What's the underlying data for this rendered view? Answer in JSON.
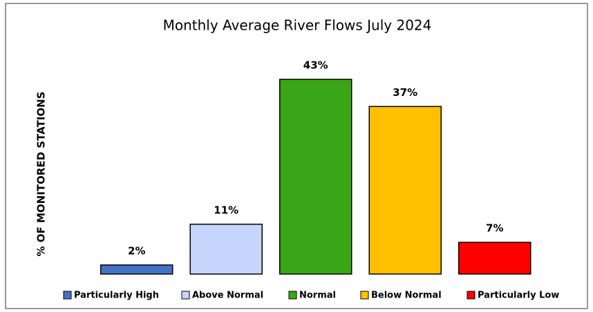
{
  "chart_data": {
    "type": "bar",
    "title": "Monthly Average River Flows July 2024",
    "y_label": "% OF MONITORED STATIONS",
    "categories": [
      "Particularly High",
      "Above Normal",
      "Normal",
      "Below Normal",
      "Particularly Low"
    ],
    "values": [
      2,
      11,
      43,
      37,
      7
    ],
    "value_labels": [
      "2%",
      "11%",
      "43%",
      "37%",
      "7%"
    ],
    "colors": [
      "#4472c4",
      "#c5d5fc",
      "#3aa617",
      "#ffc000",
      "#ff0000"
    ],
    "legend": "bottom"
  }
}
